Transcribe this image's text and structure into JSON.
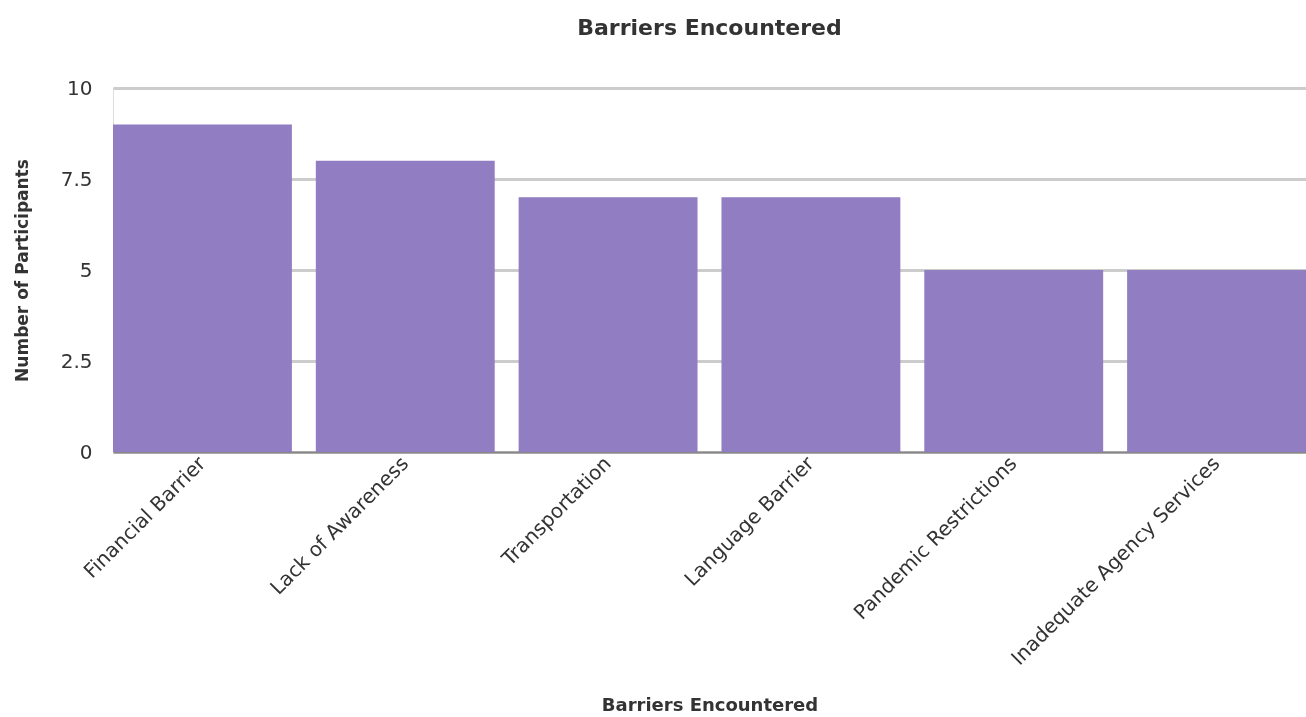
{
  "chart_data": {
    "type": "bar",
    "title": "Barriers Encountered",
    "xlabel": "Barriers Encountered",
    "ylabel": "Number of Participants",
    "categories": [
      "Financial Barrier",
      "Lack of Awareness",
      "Transportation",
      "Language Barrier",
      "Pandemic Restrictions",
      "Inadequate Agency Services"
    ],
    "values": [
      9,
      8,
      7,
      7,
      5,
      5
    ],
    "color": "#917dc2",
    "ylim": [
      0,
      10
    ],
    "yticks": [
      0,
      2.5,
      5,
      7.5,
      10
    ],
    "grid": "y"
  }
}
